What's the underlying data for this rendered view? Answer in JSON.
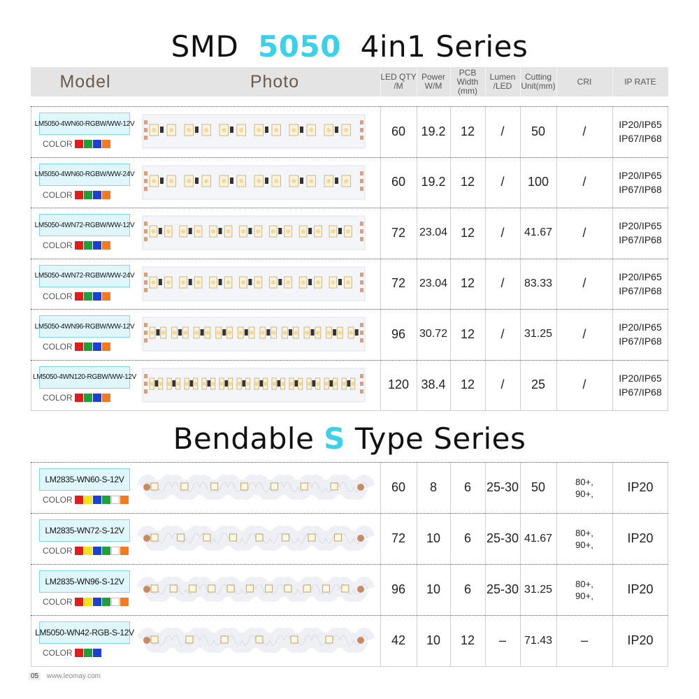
{
  "title1": {
    "pre": "SMD",
    "accent": "5050",
    "post": "4in1 Series"
  },
  "title2": {
    "pre": "Bendable",
    "accent": "S",
    "post": "Type Series"
  },
  "header": {
    "model": "Model",
    "photo": "Photo",
    "led_qty": "LED  QTY /M",
    "power": "Power W/M",
    "pcb": "PCB Width (mm)",
    "lumen": "Lumen /LED",
    "cutting": "Cutting Unit(mm)",
    "cri": "CRI",
    "ip": "IP RATE"
  },
  "color_label": "COLOR",
  "series1": [
    {
      "model": "LM5050-4WN60-RGBW/WW-12V",
      "qty": "60",
      "power": "19.2",
      "pcb": "12",
      "lumen": "/",
      "cut": "50",
      "cri": "/",
      "ip1": "IP20/IP65",
      "ip2": "IP67/IP68",
      "swatches": [
        "#e21c1c",
        "#1ea13a",
        "#1c3fd6",
        "#f47a1f"
      ]
    },
    {
      "model": "LM5050-4WN60-RGBW/WW-24V",
      "qty": "60",
      "power": "19.2",
      "pcb": "12",
      "lumen": "/",
      "cut": "100",
      "cri": "/",
      "ip1": "IP20/IP65",
      "ip2": "IP67/IP68",
      "swatches": [
        "#e21c1c",
        "#1ea13a",
        "#1c3fd6",
        "#f47a1f"
      ]
    },
    {
      "model": "LM5050-4WN72-RGBW/WW-12V",
      "qty": "72",
      "power": "23.04",
      "pcb": "12",
      "lumen": "/",
      "cut": "41.67",
      "cri": "/",
      "ip1": "IP20/IP65",
      "ip2": "IP67/IP68",
      "swatches": [
        "#e21c1c",
        "#1ea13a",
        "#1c3fd6",
        "#f47a1f"
      ]
    },
    {
      "model": "LM5050-4WN72-RGBW/WW-24V",
      "qty": "72",
      "power": "23.04",
      "pcb": "12",
      "lumen": "/",
      "cut": "83.33",
      "cri": "/",
      "ip1": "IP20/IP65",
      "ip2": "IP67/IP68",
      "swatches": [
        "#e21c1c",
        "#1ea13a",
        "#1c3fd6",
        "#f47a1f"
      ]
    },
    {
      "model": "LM5050-4WN96-RGBW/WW-12V",
      "qty": "96",
      "power": "30.72",
      "pcb": "12",
      "lumen": "/",
      "cut": "31.25",
      "cri": "/",
      "ip1": "IP20/IP65",
      "ip2": "IP67/IP68",
      "swatches": [
        "#e21c1c",
        "#1ea13a",
        "#1c3fd6",
        "#f47a1f"
      ]
    },
    {
      "model": "LM5050-4WN120-RGBW/WW-12V",
      "qty": "120",
      "power": "38.4",
      "pcb": "12",
      "lumen": "/",
      "cut": "25",
      "cri": "/",
      "ip1": "IP20/IP65",
      "ip2": "IP67/IP68",
      "swatches": [
        "#e21c1c",
        "#1ea13a",
        "#1c3fd6",
        "#f47a1f"
      ]
    }
  ],
  "series2": [
    {
      "model": "LM2835-WN60-S-12V",
      "qty": "60",
      "power": "8",
      "pcb": "6",
      "lumen": "25-30",
      "cut": "50",
      "cri1": "80+,",
      "cri2": "90+,",
      "ip": "IP20",
      "swatches": [
        "#e21c1c",
        "#f2e21c",
        "#1c3fd6",
        "#1ea13a",
        "#ffffff",
        "#f47a1f"
      ]
    },
    {
      "model": "LM2835-WN72-S-12V",
      "qty": "72",
      "power": "10",
      "pcb": "6",
      "lumen": "25-30",
      "cut": "41.67",
      "cri1": "80+,",
      "cri2": "90+,",
      "ip": "IP20",
      "swatches": [
        "#e21c1c",
        "#f2e21c",
        "#1c3fd6",
        "#1ea13a",
        "#ffffff",
        "#f47a1f"
      ]
    },
    {
      "model": "LM2835-WN96-S-12V",
      "qty": "96",
      "power": "10",
      "pcb": "6",
      "lumen": "25-30",
      "cut": "31.25",
      "cri1": "80+,",
      "cri2": "90+,",
      "ip": "IP20",
      "swatches": [
        "#e21c1c",
        "#f2e21c",
        "#1c3fd6",
        "#1ea13a",
        "#ffffff",
        "#f47a1f"
      ]
    },
    {
      "model": "LM5050-WN42-RGB-S-12V",
      "qty": "42",
      "power": "10",
      "pcb": "12",
      "lumen": "–",
      "cut": "71.43",
      "cri": "–",
      "ip": "IP20",
      "swatches": [
        "#e21c1c",
        "#1ea13a",
        "#1c3fd6"
      ]
    }
  ],
  "footer": {
    "page": "05",
    "site": "www.leomay.com"
  },
  "colors": {
    "accent": "#3ad1ea",
    "header_bg": "#e4e4e4",
    "model_box_bg": "#dff7fb",
    "model_box_border": "#7fd8e6"
  }
}
